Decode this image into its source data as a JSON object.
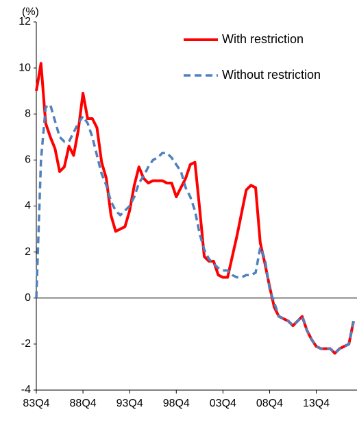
{
  "chart_data": {
    "type": "line",
    "y_unit": "(%)",
    "categories": [
      "83Q4",
      null,
      null,
      null,
      null,
      null,
      null,
      null,
      null,
      null,
      "88Q4",
      null,
      null,
      null,
      null,
      null,
      null,
      null,
      null,
      null,
      "93Q4",
      null,
      null,
      null,
      null,
      null,
      null,
      null,
      null,
      null,
      "98Q4",
      null,
      null,
      null,
      null,
      null,
      null,
      null,
      null,
      null,
      "03Q4",
      null,
      null,
      null,
      null,
      null,
      null,
      null,
      null,
      null,
      "08Q4",
      null,
      null,
      null,
      null,
      null,
      null,
      null,
      null,
      null,
      "13Q4",
      null,
      null,
      null,
      null,
      null,
      null,
      null,
      null
    ],
    "series": [
      {
        "name": "With restriction",
        "color": "#ff0000",
        "dash": false,
        "values": [
          9.0,
          10.2,
          7.6,
          7.0,
          6.5,
          5.5,
          5.7,
          6.6,
          6.2,
          7.3,
          8.9,
          7.8,
          7.8,
          7.4,
          5.9,
          5.2,
          3.6,
          2.9,
          3.0,
          3.1,
          3.8,
          4.9,
          5.7,
          5.2,
          5.0,
          5.1,
          5.1,
          5.1,
          5.0,
          5.0,
          4.4,
          4.8,
          5.2,
          5.8,
          5.9,
          3.9,
          1.8,
          1.6,
          1.6,
          1.0,
          0.9,
          0.9,
          1.8,
          2.7,
          3.7,
          4.7,
          4.9,
          4.8,
          2.4,
          1.5,
          0.5,
          -0.4,
          -0.8,
          -0.9,
          -1.0,
          -1.2,
          -1.0,
          -0.8,
          -1.4,
          -1.8,
          -2.1,
          -2.2,
          -2.2,
          -2.2,
          -2.4,
          -2.2,
          -2.1,
          -2.0,
          -1.0
        ]
      },
      {
        "name": "Without restriction",
        "color": "#4f81bd",
        "dash": true,
        "values": [
          0.0,
          6.0,
          8.3,
          8.4,
          7.7,
          7.0,
          6.8,
          6.8,
          7.2,
          7.6,
          7.9,
          7.6,
          7.0,
          6.2,
          5.4,
          4.9,
          4.2,
          3.8,
          3.6,
          3.8,
          4.0,
          4.4,
          5.0,
          5.3,
          5.7,
          6.0,
          6.1,
          6.3,
          6.3,
          6.1,
          5.8,
          5.5,
          4.8,
          4.4,
          3.8,
          2.8,
          2.1,
          1.7,
          1.5,
          1.3,
          1.2,
          1.2,
          1.0,
          0.9,
          0.9,
          1.0,
          1.0,
          1.1,
          2.2,
          1.7,
          0.4,
          -0.2,
          -0.8,
          -0.9,
          -1.0,
          -1.2,
          -1.0,
          -0.8,
          -1.4,
          -1.8,
          -2.1,
          -2.2,
          -2.2,
          -2.2,
          -2.4,
          -2.2,
          -2.1,
          -2.0,
          -1.0
        ]
      }
    ],
    "ylim": [
      -4,
      12
    ],
    "yticks": [
      -4,
      -2,
      0,
      2,
      4,
      6,
      8,
      10,
      12
    ],
    "grid": false,
    "legend": "upper right"
  }
}
